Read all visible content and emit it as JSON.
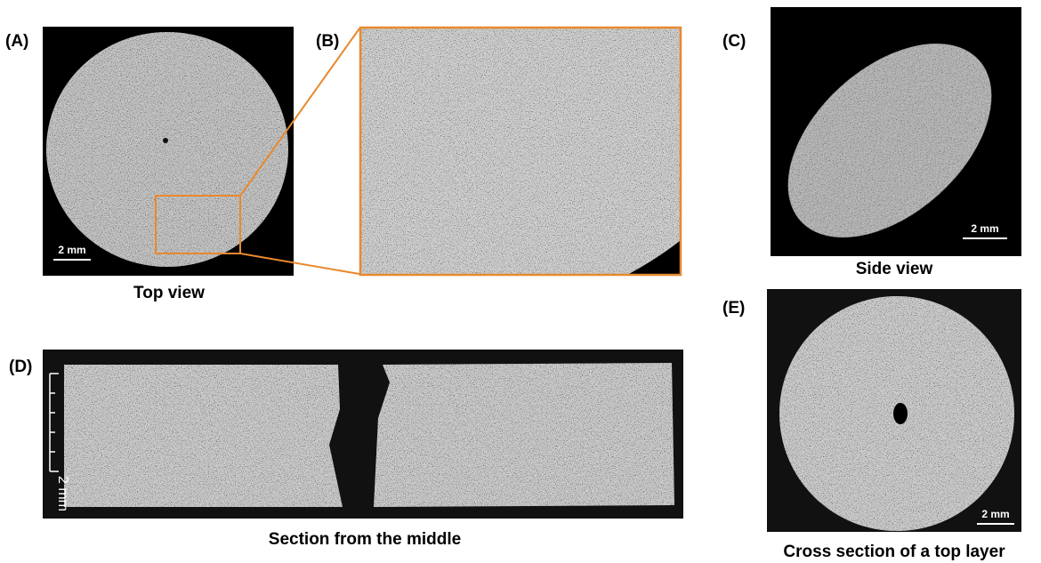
{
  "panels": [
    {
      "label": "(A)",
      "caption": "Top view",
      "scale_bar": "2 mm"
    },
    {
      "label": "(B)"
    },
    {
      "label": "(C)",
      "caption": "Side view",
      "scale_bar": "2 mm"
    },
    {
      "label": "(D)",
      "caption": "Section from the middle",
      "scale_bar": "2 mm"
    },
    {
      "label": "(E)",
      "caption": "Cross section of a top layer",
      "scale_bar": "2 mm"
    }
  ]
}
